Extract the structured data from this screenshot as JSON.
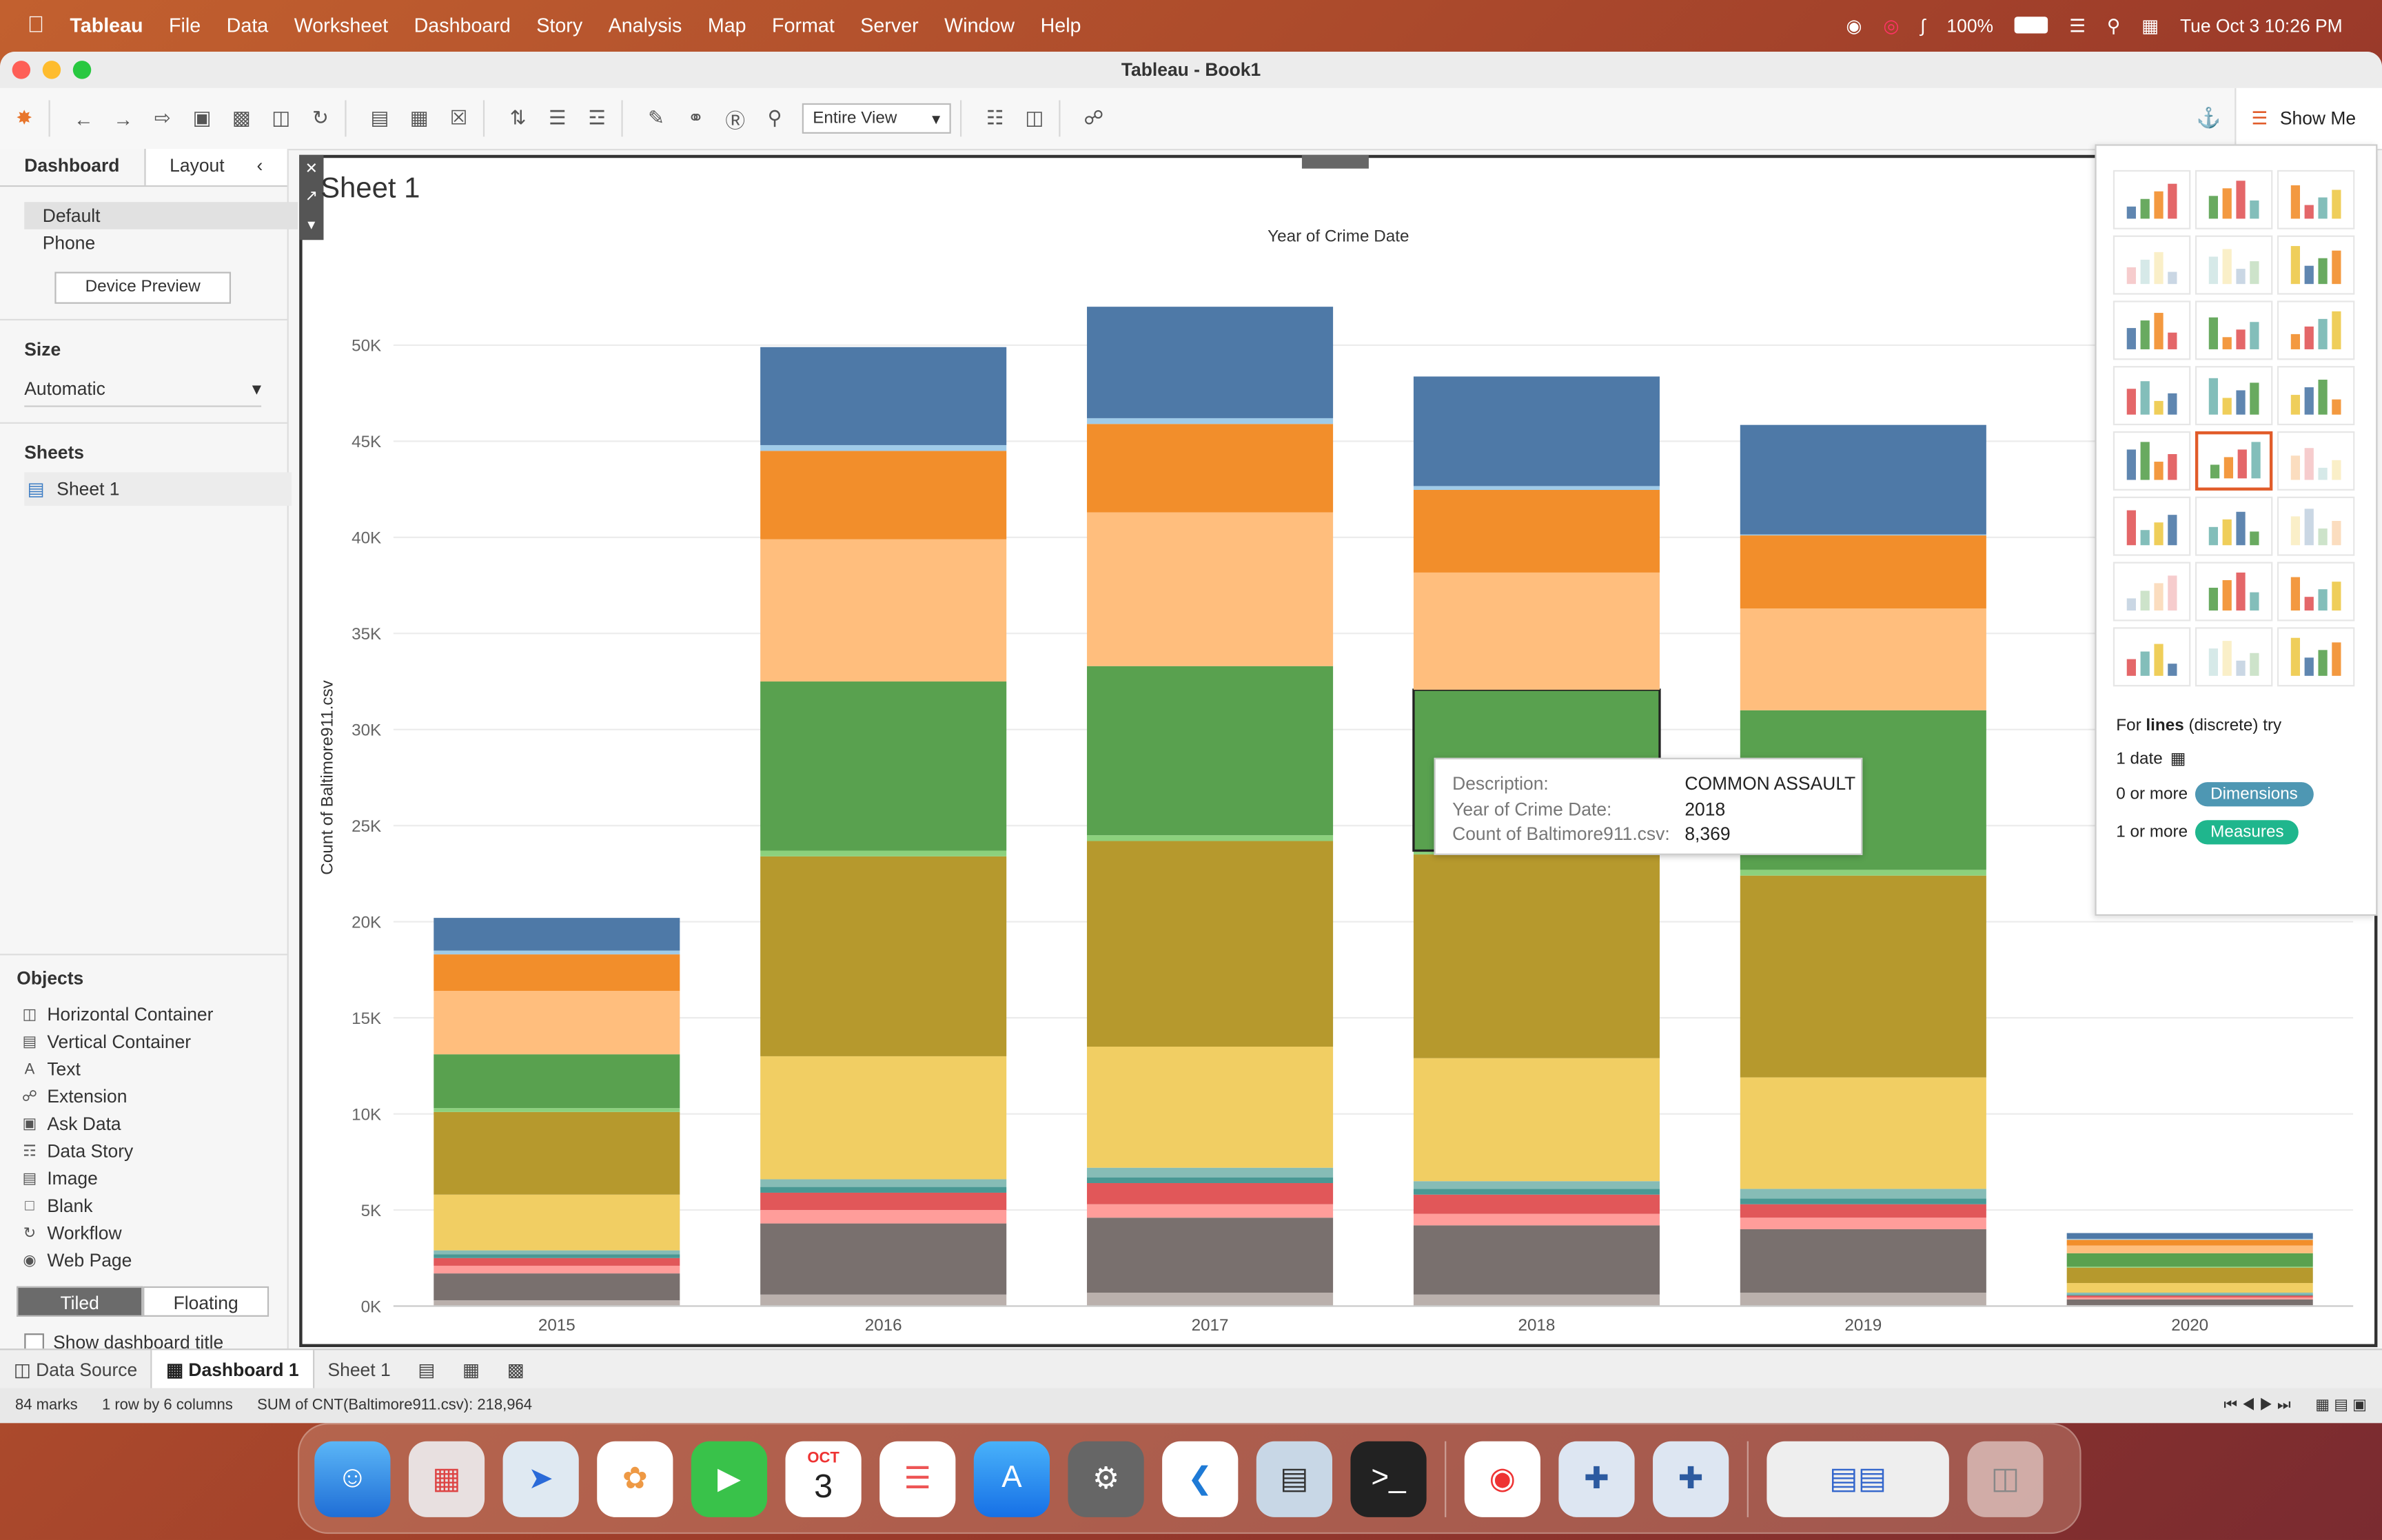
{
  "menubar": {
    "app": "Tableau",
    "items": [
      "File",
      "Data",
      "Worksheet",
      "Dashboard",
      "Story",
      "Analysis",
      "Map",
      "Format",
      "Server",
      "Window",
      "Help"
    ],
    "battery": "100%",
    "datetime": "Tue Oct 3  10:26 PM"
  },
  "window": {
    "title": "Tableau - Book1"
  },
  "toolbar": {
    "view_select": "Entire View",
    "show_me": "Show Me"
  },
  "left_pane": {
    "tabs": [
      "Dashboard",
      "Layout"
    ],
    "devices": [
      "Default",
      "Phone"
    ],
    "device_preview": "Device Preview",
    "size_heading": "Size",
    "size_value": "Automatic",
    "sheets_heading": "Sheets",
    "sheets": [
      "Sheet 1"
    ],
    "objects_heading": "Objects",
    "objects": [
      "Horizontal Container",
      "Vertical Container",
      "Text",
      "Extension",
      "Ask Data",
      "Data Story",
      "Image",
      "Blank",
      "Workflow",
      "Web Page"
    ],
    "tiled": "Tiled",
    "floating": "Floating",
    "show_title": "Show dashboard title"
  },
  "sheet_title": "Sheet 1",
  "chart_data": {
    "type": "bar",
    "stacked": true,
    "title": "",
    "top_label": "Year of Crime Date",
    "ylabel": "Count of Baltimore911.csv",
    "xlabel": "",
    "categories": [
      "2015",
      "2016",
      "2017",
      "2018",
      "2019",
      "2020"
    ],
    "ylim": [
      0,
      55000
    ],
    "yticks": [
      "0K",
      "5K",
      "10K",
      "15K",
      "20K",
      "25K",
      "30K",
      "35K",
      "40K",
      "45K",
      "50K"
    ],
    "grid": true,
    "series": [
      {
        "color": "#bab0ac",
        "values": [
          300,
          600,
          700,
          600,
          700,
          50
        ]
      },
      {
        "color": "#79706e",
        "values": [
          1400,
          3700,
          3900,
          3600,
          3300,
          300
        ]
      },
      {
        "color": "#ff9d9a",
        "values": [
          400,
          700,
          700,
          600,
          600,
          100
        ]
      },
      {
        "color": "#e15759",
        "values": [
          400,
          900,
          1100,
          1000,
          700,
          100
        ]
      },
      {
        "color": "#499894",
        "values": [
          200,
          300,
          300,
          300,
          300,
          50
        ]
      },
      {
        "color": "#86bcb6",
        "values": [
          200,
          400,
          500,
          400,
          500,
          100
        ]
      },
      {
        "color": "#f1ce63",
        "values": [
          2900,
          6400,
          6300,
          6400,
          5800,
          500
        ]
      },
      {
        "color": "#b6992d",
        "values": [
          4300,
          10400,
          10700,
          10600,
          10500,
          800
        ]
      },
      {
        "color": "#8cd17d",
        "values": [
          200,
          300,
          300,
          200,
          300,
          50
        ]
      },
      {
        "color": "#59a14f",
        "values": [
          2800,
          8800,
          8800,
          8369,
          8300,
          700
        ]
      },
      {
        "color": "#ffbe7d",
        "values": [
          3300,
          7400,
          8000,
          6100,
          5300,
          400
        ]
      },
      {
        "color": "#f28e2b",
        "values": [
          1900,
          4600,
          4600,
          4300,
          3800,
          300
        ]
      },
      {
        "color": "#a0cbe8",
        "values": [
          200,
          300,
          300,
          200,
          50,
          50
        ]
      },
      {
        "color": "#4e79a7",
        "values": [
          1700,
          5100,
          5800,
          5700,
          5700,
          300
        ]
      }
    ]
  },
  "tooltip": {
    "rows": [
      {
        "k": "Description:",
        "v": "COMMON ASSAULT"
      },
      {
        "k": "Year of Crime Date:",
        "v": "2018"
      },
      {
        "k": "Count of Baltimore911.csv:",
        "v": "8,369"
      }
    ]
  },
  "show_me": {
    "hint_prefix": "For ",
    "hint_bold": "lines",
    "hint_suffix": " (discrete) try",
    "req1": "1 date",
    "req2_prefix": "0 or more",
    "req2_pill": "Dimensions",
    "req3_prefix": "1 or more",
    "req3_pill": "Measures",
    "dimension_color": "#4e97b3",
    "measure_color": "#1fb68d"
  },
  "bottom_tabs": [
    "Data Source",
    "Dashboard 1",
    "Sheet 1"
  ],
  "status": {
    "marks": "84 marks",
    "dims": "1 row by 6 columns",
    "sum": "SUM of CNT(Baltimore911.csv): 218,964"
  },
  "dock": {
    "calendar_month": "OCT",
    "calendar_day": "3"
  }
}
